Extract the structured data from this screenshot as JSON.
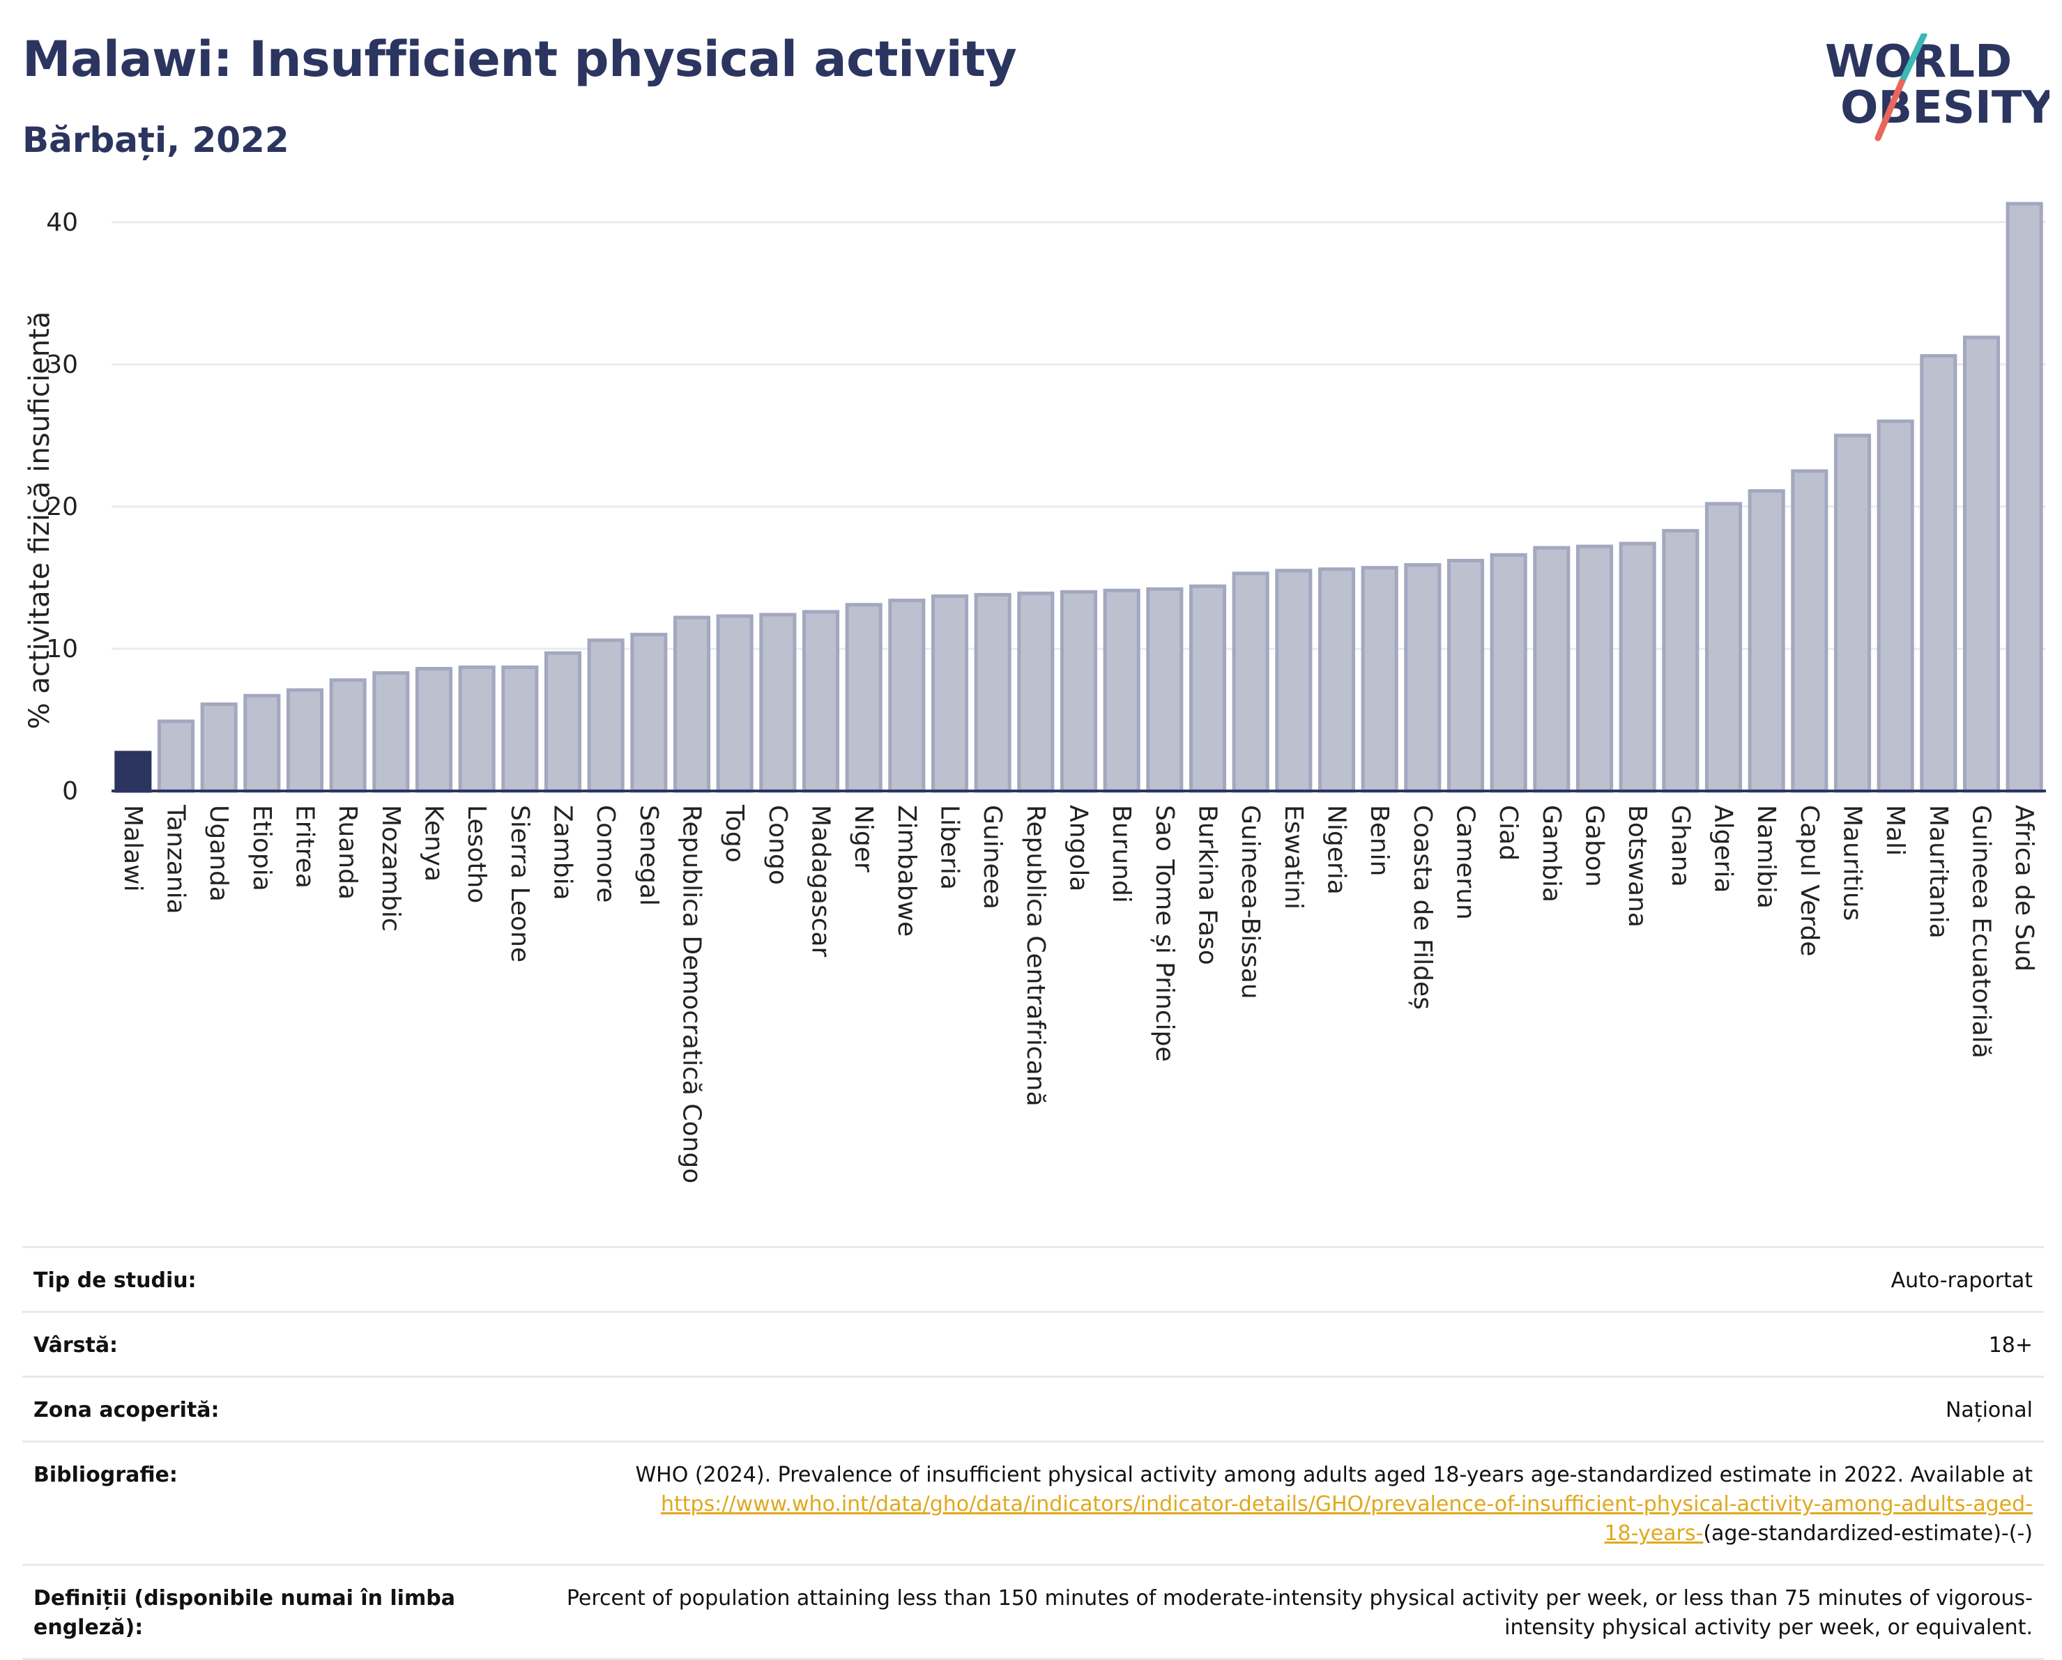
{
  "header": {
    "title": "Malawi: Insufficient physical activity",
    "subtitle": "Bărbați, 2022"
  },
  "logo": {
    "line1": "WORLD",
    "line2": "OBESITY"
  },
  "colors": {
    "highlight": "#2b3560",
    "bar": "#bcc0cf",
    "bar_border": "#a3a8c0",
    "text": "#2b3560",
    "link": "#e0a81c"
  },
  "chart_data": {
    "type": "bar",
    "ylabel": "% activitate fizică insuficientă",
    "ylim": [
      0,
      42
    ],
    "yticks": [
      0,
      10,
      20,
      30,
      40
    ],
    "grid": true,
    "highlight": "Malawi",
    "categories": [
      "Malawi",
      "Tanzania",
      "Uganda",
      "Etiopia",
      "Eritrea",
      "Ruanda",
      "Mozambic",
      "Kenya",
      "Lesotho",
      "Sierra Leone",
      "Zambia",
      "Comore",
      "Senegal",
      "Republica Democratică Congo",
      "Togo",
      "Congo",
      "Madagascar",
      "Niger",
      "Zimbabwe",
      "Liberia",
      "Guineea",
      "Republica Centrafricană",
      "Angola",
      "Burundi",
      "Sao Tome și Principe",
      "Burkina Faso",
      "Guineea-Bissau",
      "Eswatini",
      "Nigeria",
      "Benin",
      "Coasta de Fildeș",
      "Camerun",
      "Ciad",
      "Gambia",
      "Gabon",
      "Botswana",
      "Ghana",
      "Algeria",
      "Namibia",
      "Capul Verde",
      "Mauritius",
      "Mali",
      "Mauritania",
      "Guineea Ecuatorială",
      "Africa de Sud"
    ],
    "values": [
      2.7,
      4.9,
      6.1,
      6.7,
      7.1,
      7.8,
      8.3,
      8.6,
      8.7,
      8.7,
      9.7,
      10.6,
      11.0,
      12.2,
      12.3,
      12.4,
      12.6,
      13.1,
      13.4,
      13.7,
      13.8,
      13.9,
      14.0,
      14.1,
      14.2,
      14.4,
      15.3,
      15.5,
      15.6,
      15.7,
      15.9,
      16.2,
      16.6,
      17.1,
      17.2,
      17.4,
      18.3,
      20.2,
      21.1,
      22.5,
      25.0,
      26.0,
      30.6,
      31.9,
      41.3
    ]
  },
  "info": {
    "study_type": {
      "label": "Tip de studiu:",
      "value": "Auto-raportat"
    },
    "age": {
      "label": "Vârstă:",
      "value": "18+"
    },
    "coverage": {
      "label": "Zona acoperită:",
      "value": "Național"
    },
    "bibliography": {
      "label": "Bibliografie:",
      "text": "WHO (2024). Prevalence of insufficient physical activity among adults aged 18-years age-standardized estimate in 2022. Available at",
      "link_line1": "https://www.who.int/data/gho/data/indicators/indicator-details/GHO/prevalence-of-insufficient-physical-activity-among-adults-aged-",
      "link_line2": "18-years-",
      "suffix": "(age-standardized-estimate)-(-)"
    },
    "definitions": {
      "label": "Definiții (disponibile numai în limba engleză):",
      "value": "Percent of population attaining less than 150 minutes of moderate-intensity physical activity per week, or less than 75 minutes of vigorous-intensity physical activity per week, or equivalent."
    }
  }
}
